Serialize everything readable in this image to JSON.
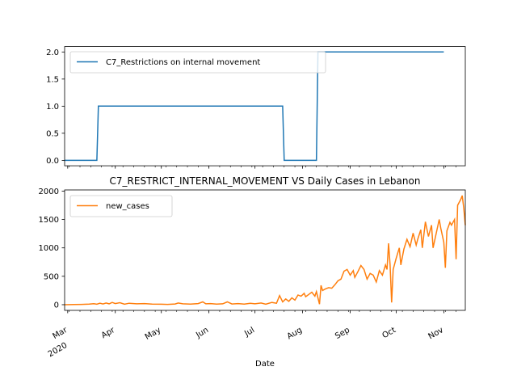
{
  "chart_data": [
    {
      "type": "line",
      "title": "",
      "xlabel": "",
      "ylabel": "",
      "ylim": [
        -0.1,
        2.1
      ],
      "y_ticks": [
        "0.0",
        "0.5",
        "1.0",
        "1.5",
        "2.0"
      ],
      "legend_position": "upper-left",
      "series": [
        {
          "name": "C7_Restrictions on internal movement",
          "color": "#1f77b4",
          "points": [
            [
              "2020-02-28",
              0
            ],
            [
              "2020-03-20",
              0
            ],
            [
              "2020-03-21",
              1
            ],
            [
              "2020-07-19",
              1
            ],
            [
              "2020-07-20",
              0
            ],
            [
              "2020-08-10",
              0
            ],
            [
              "2020-08-11",
              2
            ],
            [
              "2020-11-01",
              2
            ]
          ]
        }
      ]
    },
    {
      "type": "line",
      "title": "C7_RESTRICT_INTERNAL_MOVEMENT VS Daily Cases in Lebanon",
      "xlabel": "Date",
      "ylabel": "",
      "ylim": [
        -100,
        2020
      ],
      "y_ticks": [
        "0",
        "500",
        "1000",
        "1500",
        "2000"
      ],
      "x_ticks": [
        {
          "date": "2020-03-01",
          "label": "Mar",
          "sub": "2020"
        },
        {
          "date": "2020-04-01",
          "label": "Apr"
        },
        {
          "date": "2020-05-01",
          "label": "May"
        },
        {
          "date": "2020-06-01",
          "label": "Jun"
        },
        {
          "date": "2020-07-01",
          "label": "Jul"
        },
        {
          "date": "2020-08-01",
          "label": "Aug"
        },
        {
          "date": "2020-09-01",
          "label": "Sep"
        },
        {
          "date": "2020-10-01",
          "label": "Oct"
        },
        {
          "date": "2020-11-01",
          "label": "Nov"
        }
      ],
      "legend_position": "upper-left",
      "series": [
        {
          "name": "new_cases",
          "color": "#ff7f0e",
          "points": [
            [
              "2020-02-28",
              0
            ],
            [
              "2020-03-05",
              2
            ],
            [
              "2020-03-10",
              5
            ],
            [
              "2020-03-15",
              10
            ],
            [
              "2020-03-18",
              18
            ],
            [
              "2020-03-20",
              8
            ],
            [
              "2020-03-22",
              25
            ],
            [
              "2020-03-24",
              12
            ],
            [
              "2020-03-26",
              30
            ],
            [
              "2020-03-28",
              15
            ],
            [
              "2020-03-30",
              40
            ],
            [
              "2020-04-01",
              20
            ],
            [
              "2020-04-04",
              35
            ],
            [
              "2020-04-07",
              10
            ],
            [
              "2020-04-10",
              25
            ],
            [
              "2020-04-15",
              15
            ],
            [
              "2020-04-20",
              20
            ],
            [
              "2020-04-25",
              10
            ],
            [
              "2020-05-01",
              8
            ],
            [
              "2020-05-05",
              5
            ],
            [
              "2020-05-10",
              12
            ],
            [
              "2020-05-12",
              30
            ],
            [
              "2020-05-15",
              15
            ],
            [
              "2020-05-20",
              10
            ],
            [
              "2020-05-25",
              20
            ],
            [
              "2020-05-28",
              50
            ],
            [
              "2020-05-30",
              15
            ],
            [
              "2020-06-02",
              20
            ],
            [
              "2020-06-06",
              10
            ],
            [
              "2020-06-10",
              15
            ],
            [
              "2020-06-13",
              50
            ],
            [
              "2020-06-16",
              12
            ],
            [
              "2020-06-20",
              20
            ],
            [
              "2020-06-24",
              10
            ],
            [
              "2020-06-28",
              25
            ],
            [
              "2020-07-01",
              15
            ],
            [
              "2020-07-05",
              30
            ],
            [
              "2020-07-08",
              10
            ],
            [
              "2020-07-12",
              40
            ],
            [
              "2020-07-15",
              25
            ],
            [
              "2020-07-17",
              160
            ],
            [
              "2020-07-19",
              50
            ],
            [
              "2020-07-21",
              100
            ],
            [
              "2020-07-23",
              60
            ],
            [
              "2020-07-25",
              120
            ],
            [
              "2020-07-27",
              80
            ],
            [
              "2020-07-29",
              170
            ],
            [
              "2020-07-31",
              150
            ],
            [
              "2020-08-02",
              200
            ],
            [
              "2020-08-03",
              140
            ],
            [
              "2020-08-05",
              180
            ],
            [
              "2020-08-07",
              220
            ],
            [
              "2020-08-09",
              150
            ],
            [
              "2020-08-10",
              230
            ],
            [
              "2020-08-12",
              10
            ],
            [
              "2020-08-13",
              340
            ],
            [
              "2020-08-14",
              250
            ],
            [
              "2020-08-16",
              280
            ],
            [
              "2020-08-18",
              300
            ],
            [
              "2020-08-20",
              290
            ],
            [
              "2020-08-22",
              350
            ],
            [
              "2020-08-24",
              420
            ],
            [
              "2020-08-26",
              450
            ],
            [
              "2020-08-28",
              590
            ],
            [
              "2020-08-30",
              620
            ],
            [
              "2020-09-01",
              520
            ],
            [
              "2020-09-03",
              600
            ],
            [
              "2020-09-04",
              480
            ],
            [
              "2020-09-06",
              580
            ],
            [
              "2020-09-08",
              690
            ],
            [
              "2020-09-10",
              620
            ],
            [
              "2020-09-12",
              450
            ],
            [
              "2020-09-14",
              550
            ],
            [
              "2020-09-16",
              520
            ],
            [
              "2020-09-18",
              400
            ],
            [
              "2020-09-20",
              600
            ],
            [
              "2020-09-22",
              520
            ],
            [
              "2020-09-24",
              700
            ],
            [
              "2020-09-25",
              620
            ],
            [
              "2020-09-26",
              1080
            ],
            [
              "2020-09-27",
              700
            ],
            [
              "2020-09-28",
              40
            ],
            [
              "2020-09-29",
              620
            ],
            [
              "2020-10-01",
              820
            ],
            [
              "2020-10-03",
              1000
            ],
            [
              "2020-10-04",
              700
            ],
            [
              "2020-10-06",
              980
            ],
            [
              "2020-10-08",
              1150
            ],
            [
              "2020-10-10",
              1020
            ],
            [
              "2020-10-12",
              1260
            ],
            [
              "2020-10-14",
              1050
            ],
            [
              "2020-10-15",
              1150
            ],
            [
              "2020-10-17",
              1320
            ],
            [
              "2020-10-18",
              1000
            ],
            [
              "2020-10-20",
              1460
            ],
            [
              "2020-10-22",
              1200
            ],
            [
              "2020-10-24",
              1400
            ],
            [
              "2020-10-25",
              1000
            ],
            [
              "2020-10-27",
              1250
            ],
            [
              "2020-10-29",
              1500
            ],
            [
              "2020-10-30",
              1350
            ],
            [
              "2020-11-01",
              1100
            ],
            [
              "2020-11-02",
              650
            ],
            [
              "2020-11-03",
              1300
            ],
            [
              "2020-11-05",
              1450
            ],
            [
              "2020-11-06",
              1400
            ],
            [
              "2020-11-08",
              1500
            ],
            [
              "2020-11-09",
              800
            ],
            [
              "2020-11-10",
              1750
            ],
            [
              "2020-11-12",
              1850
            ],
            [
              "2020-11-13",
              1920
            ],
            [
              "2020-11-14",
              1700
            ],
            [
              "2020-11-15",
              1400
            ]
          ]
        }
      ]
    }
  ]
}
